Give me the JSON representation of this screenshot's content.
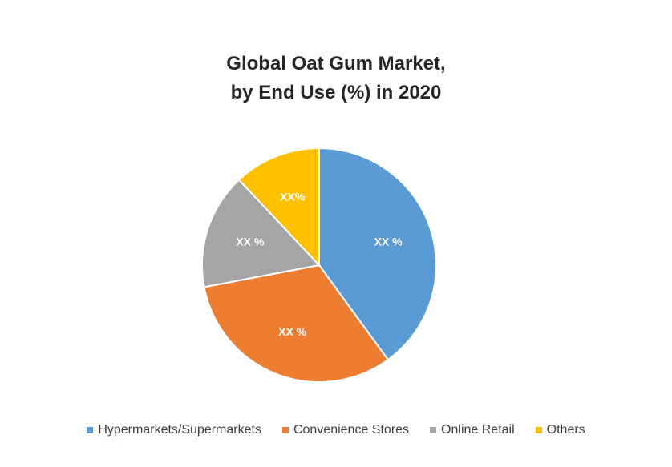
{
  "chart_data": {
    "type": "pie",
    "title_lines": [
      "Global Oat Gum Market,",
      "by End Use (%) in 2020"
    ],
    "slices": [
      {
        "name": "Hypermarkets/Supermarkets",
        "value": 40,
        "label": "XX %",
        "color": "#5B9BD5"
      },
      {
        "name": "Convenience Stores",
        "value": 32,
        "label": "XX %",
        "color": "#ED7D31"
      },
      {
        "name": "Online Retail",
        "value": 16,
        "label": "XX %",
        "color": "#A5A5A5"
      },
      {
        "name": "Others",
        "value": 12,
        "label": "XX%",
        "color": "#FFC000"
      }
    ],
    "legend_position": "bottom"
  }
}
